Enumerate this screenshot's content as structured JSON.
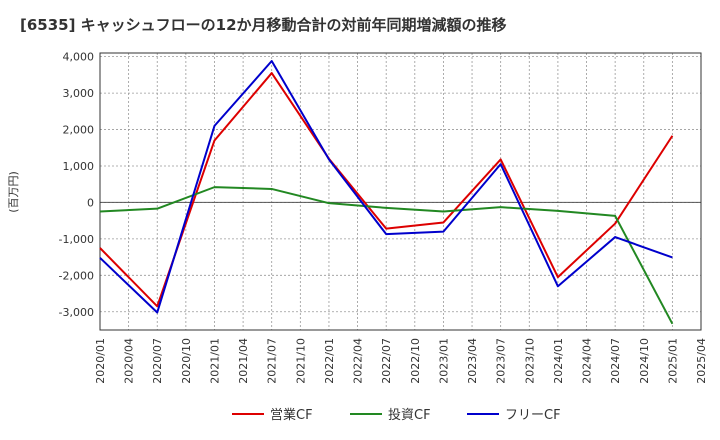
{
  "chart_data": {
    "type": "line",
    "title": "[6535]  キャッシュフローの12か月移動合計の対前年同期増減額の推移",
    "xlabel": "",
    "ylabel": "(百万円)",
    "ylim": [
      -3500,
      4100
    ],
    "yticks": [
      4000,
      3000,
      2000,
      1000,
      0,
      -1000,
      -2000,
      -3000
    ],
    "ytick_labels": [
      "4,000",
      "3,000",
      "2,000",
      "1,000",
      "0",
      "-1,000",
      "-2,000",
      "-3,000"
    ],
    "x": [
      "2020/01",
      "2020/04",
      "2020/07",
      "2020/10",
      "2021/01",
      "2021/04",
      "2021/07",
      "2021/10",
      "2022/01",
      "2022/04",
      "2022/07",
      "2022/10",
      "2023/01",
      "2023/04",
      "2023/07",
      "2023/10",
      "2024/01",
      "2024/04",
      "2024/07",
      "2024/10",
      "2025/01",
      "2025/04"
    ],
    "grid": true,
    "legend": "bottom",
    "series": [
      {
        "name": "営業CF",
        "color": "#dd0000",
        "points": [
          [
            "2020/01",
            -1250
          ],
          [
            "2020/07",
            -2850
          ],
          [
            "2021/01",
            1700
          ],
          [
            "2021/07",
            3550
          ],
          [
            "2022/01",
            1200
          ],
          [
            "2022/07",
            -720
          ],
          [
            "2023/01",
            -550
          ],
          [
            "2023/07",
            1180
          ],
          [
            "2024/01",
            -2050
          ],
          [
            "2024/07",
            -580
          ],
          [
            "2025/01",
            1830
          ]
        ]
      },
      {
        "name": "投資CF",
        "color": "#228822",
        "points": [
          [
            "2020/01",
            -250
          ],
          [
            "2020/07",
            -170
          ],
          [
            "2021/01",
            420
          ],
          [
            "2021/07",
            370
          ],
          [
            "2022/01",
            -20
          ],
          [
            "2022/07",
            -150
          ],
          [
            "2023/01",
            -250
          ],
          [
            "2023/07",
            -130
          ],
          [
            "2024/01",
            -230
          ],
          [
            "2024/07",
            -370
          ],
          [
            "2025/01",
            -3330
          ]
        ]
      },
      {
        "name": "フリーCF",
        "color": "#0000cc",
        "points": [
          [
            "2020/01",
            -1520
          ],
          [
            "2020/07",
            -3020
          ],
          [
            "2021/01",
            2100
          ],
          [
            "2021/07",
            3880
          ],
          [
            "2022/01",
            1180
          ],
          [
            "2022/07",
            -870
          ],
          [
            "2023/01",
            -800
          ],
          [
            "2023/07",
            1050
          ],
          [
            "2024/01",
            -2300
          ],
          [
            "2024/07",
            -950
          ],
          [
            "2025/01",
            -1510
          ]
        ]
      }
    ]
  }
}
